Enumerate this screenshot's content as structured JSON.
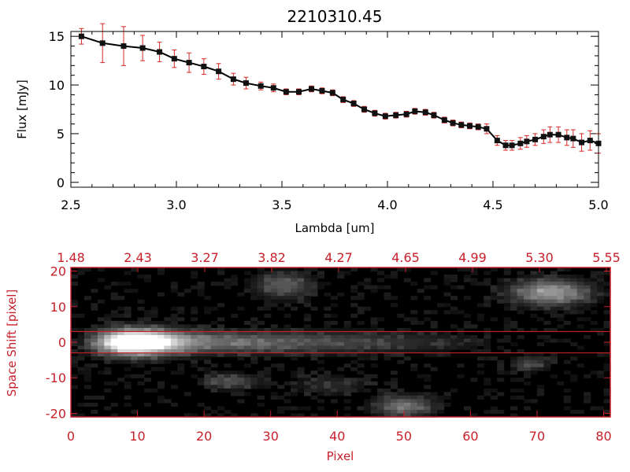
{
  "colors": {
    "black": "#000000",
    "red": "#d62728",
    "axis_red": "#c8202a",
    "background": "#ffffff"
  },
  "chart_data": [
    {
      "type": "line",
      "title": "2210310.45",
      "xlabel": "Lambda [um]",
      "ylabel": "Flux [mJy]",
      "xlim": [
        2.5,
        5.0
      ],
      "ylim": [
        -0.5,
        15.5
      ],
      "xticks": [
        "2.5",
        "3.0",
        "3.5",
        "4.0",
        "4.5",
        "5.0"
      ],
      "yticks": [
        "0",
        "5",
        "10",
        "15"
      ],
      "grid": false,
      "legend": "none",
      "series": [
        {
          "x": [
            2.55,
            2.65,
            2.75,
            2.84,
            2.92,
            2.99,
            3.06,
            3.13,
            3.2,
            3.27,
            3.33,
            3.4,
            3.46,
            3.52,
            3.58,
            3.64,
            3.69,
            3.74,
            3.79,
            3.84,
            3.89,
            3.94,
            3.99,
            4.04,
            4.09,
            4.13,
            4.18,
            4.22,
            4.27,
            4.31,
            4.35,
            4.39,
            4.43,
            4.47,
            4.52,
            4.56,
            4.59,
            4.63,
            4.66,
            4.7,
            4.74,
            4.77,
            4.81,
            4.85,
            4.88,
            4.92,
            4.96,
            5.0
          ],
          "y": [
            15.0,
            14.3,
            14.0,
            13.8,
            13.4,
            12.7,
            12.3,
            11.9,
            11.4,
            10.6,
            10.2,
            9.9,
            9.7,
            9.3,
            9.3,
            9.6,
            9.4,
            9.2,
            8.5,
            8.1,
            7.5,
            7.1,
            6.8,
            6.9,
            7.0,
            7.3,
            7.2,
            6.9,
            6.4,
            6.1,
            5.9,
            5.8,
            5.7,
            5.5,
            4.3,
            3.8,
            3.8,
            4.0,
            4.2,
            4.4,
            4.7,
            4.9,
            4.9,
            4.6,
            4.5,
            4.1,
            4.3,
            4.0
          ],
          "yerr": [
            0.8,
            2.0,
            2.0,
            1.3,
            1.0,
            0.9,
            1.0,
            0.8,
            0.8,
            0.6,
            0.6,
            0.4,
            0.4,
            0.3,
            0.3,
            0.3,
            0.3,
            0.3,
            0.3,
            0.3,
            0.3,
            0.3,
            0.3,
            0.3,
            0.3,
            0.3,
            0.3,
            0.3,
            0.3,
            0.3,
            0.3,
            0.3,
            0.3,
            0.5,
            0.5,
            0.5,
            0.5,
            0.6,
            0.6,
            0.6,
            0.7,
            0.8,
            0.8,
            0.8,
            0.9,
            0.9,
            1.0,
            1.0
          ]
        }
      ]
    },
    {
      "type": "heatmap",
      "xlabel": "Pixel",
      "ylabel": "Space Shift [pixel]",
      "xlim": [
        0,
        81
      ],
      "ylim": [
        -21,
        21
      ],
      "xticks": [
        "0",
        "10",
        "20",
        "30",
        "40",
        "50",
        "60",
        "70",
        "80"
      ],
      "yticks": [
        "-20",
        "-10",
        "0",
        "10",
        "20"
      ],
      "top_axis_ticks": [
        "1.48",
        "2.43",
        "3.27",
        "3.82",
        "4.27",
        "4.65",
        "4.99",
        "5.30",
        "5.55"
      ],
      "extraction_lines_y": [
        3,
        -3
      ],
      "colormap": "grayscale",
      "grid": false,
      "sources": [
        {
          "x": 10,
          "y": 0,
          "peak": 0.95,
          "sx": 4,
          "sy": 2.5
        },
        {
          "x": 72,
          "y": 14,
          "peak": 0.6,
          "sx": 4,
          "sy": 2.5
        },
        {
          "x": 32,
          "y": 16,
          "peak": 0.35,
          "sx": 3,
          "sy": 2.5
        },
        {
          "x": 50,
          "y": -18,
          "peak": 0.45,
          "sx": 3,
          "sy": 2
        },
        {
          "x": 24,
          "y": -11,
          "peak": 0.3,
          "sx": 3,
          "sy": 1.5
        },
        {
          "x": 69,
          "y": -6,
          "peak": 0.25,
          "sx": 2,
          "sy": 1.5
        },
        {
          "x": 39,
          "y": -12,
          "peak": 0.15,
          "sx": 4,
          "sy": 2
        }
      ]
    }
  ]
}
